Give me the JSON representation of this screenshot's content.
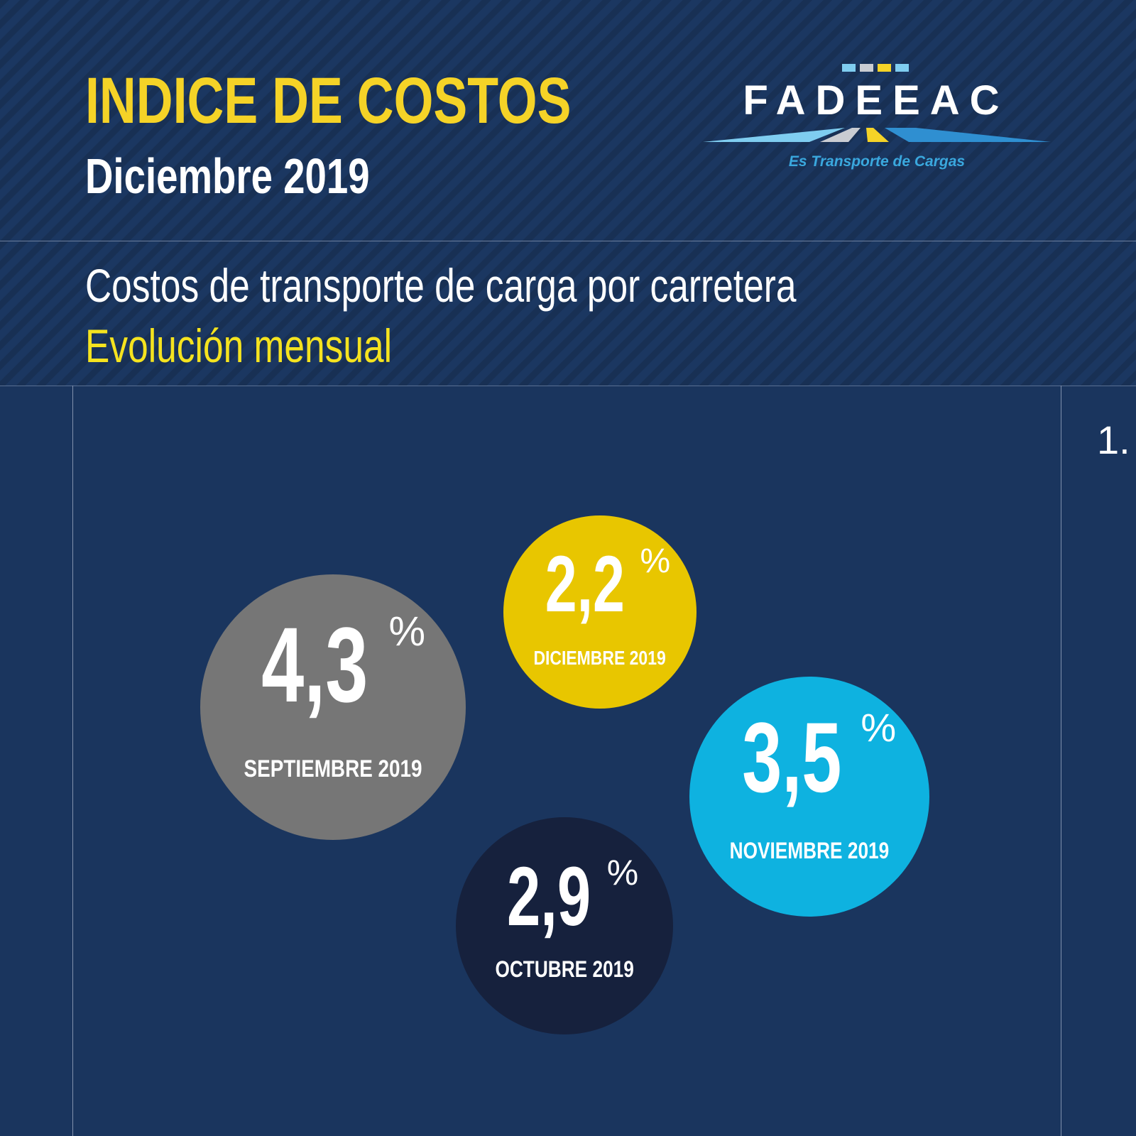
{
  "header": {
    "title": "INDICE DE COSTOS",
    "subtitle": "Diciembre 2019",
    "description": "Costos de transporte de carga por carretera",
    "description_highlight": "Evolución mensual"
  },
  "logo": {
    "name": "FADEEAC",
    "tagline": "Es Transporte de Cargas",
    "colors": {
      "light_blue": "#7fcdf0",
      "gray": "#c9ccd2",
      "yellow": "#f5d327",
      "blue": "#2f8fd1"
    }
  },
  "frame": {
    "marker": "1."
  },
  "chart_data": {
    "type": "bubble",
    "title": "",
    "unit": "%",
    "points": [
      {
        "label": "SEPTIEMBRE 2019",
        "value": 4.3,
        "display": "4,3",
        "color": "#767676"
      },
      {
        "label": "DICIEMBRE 2019",
        "value": 2.2,
        "display": "2,2",
        "color": "#e8c600"
      },
      {
        "label": "NOVIEMBRE 2019",
        "value": 3.5,
        "display": "3,5",
        "color": "#0eb2e0"
      },
      {
        "label": "OCTUBRE 2019",
        "value": 2.9,
        "display": "2,9",
        "color": "#16213d"
      }
    ]
  }
}
